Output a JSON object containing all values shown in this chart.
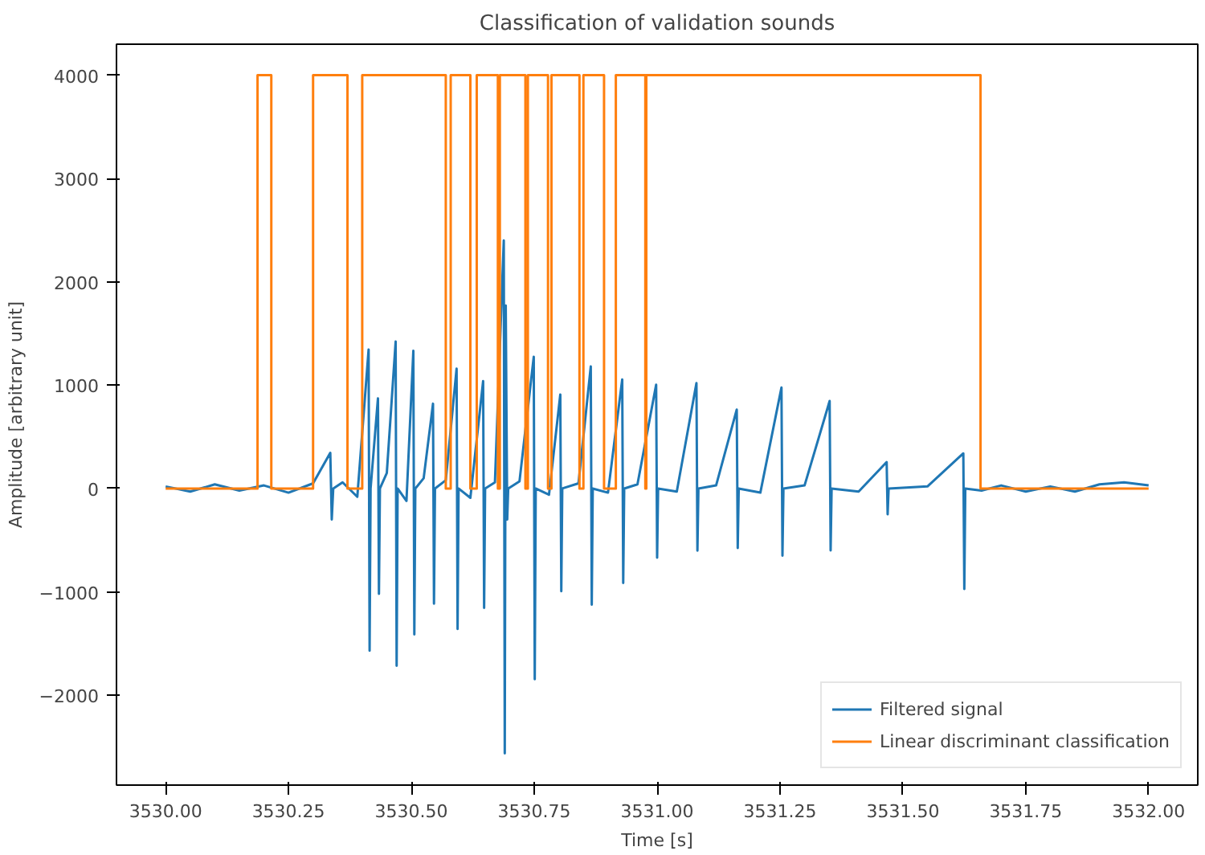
{
  "chart_data": {
    "type": "line",
    "title": "Classification of validation sounds",
    "xlabel": "Time [s]",
    "ylabel": "Amplitude [arbitrary unit]",
    "xlim": [
      3529.9,
      3532.1
    ],
    "ylim": [
      -2870,
      4300
    ],
    "xticks": [
      {
        "value": 3530,
        "label": "3530.00"
      },
      {
        "value": 3530.25,
        "label": "3530.25"
      },
      {
        "value": 3530.5,
        "label": "3530.50"
      },
      {
        "value": 3530.75,
        "label": "3530.75"
      },
      {
        "value": 3531,
        "label": "3531.00"
      },
      {
        "value": 3531.25,
        "label": "3531.25"
      },
      {
        "value": 3531.5,
        "label": "3531.50"
      },
      {
        "value": 3531.75,
        "label": "3531.75"
      },
      {
        "value": 3532,
        "label": "3532.00"
      }
    ],
    "yticks": [
      {
        "value": -2000,
        "label": "−2000"
      },
      {
        "value": -1000,
        "label": "−1000"
      },
      0,
      1000,
      2000,
      3000,
      4000
    ],
    "grid": false,
    "legend": "bottom right",
    "marker": "none",
    "line_style": "solid",
    "series": [
      {
        "name": "Filtered signal",
        "color": "#1f77b4",
        "x": [
          3530.0,
          3530.05,
          3530.1,
          3530.15,
          3530.2,
          3530.25,
          3530.3,
          3530.335,
          3530.338,
          3530.341,
          3530.36,
          3530.39,
          3530.413,
          3530.415,
          3530.417,
          3530.432,
          3530.434,
          3530.436,
          3530.45,
          3530.468,
          3530.47,
          3530.472,
          3530.49,
          3530.504,
          3530.506,
          3530.508,
          3530.525,
          3530.544,
          3530.546,
          3530.548,
          3530.57,
          3530.592,
          3530.594,
          3530.596,
          3530.62,
          3530.646,
          3530.648,
          3530.65,
          3530.67,
          3530.688,
          3530.69,
          3530.692,
          3530.695,
          3530.697,
          3530.72,
          3530.749,
          3530.751,
          3530.753,
          3530.78,
          3530.803,
          3530.805,
          3530.807,
          3530.84,
          3530.865,
          3530.867,
          3530.869,
          3530.9,
          3530.929,
          3530.931,
          3530.933,
          3530.96,
          3530.998,
          3531.0,
          3531.002,
          3531.04,
          3531.08,
          3531.082,
          3531.084,
          3531.12,
          3531.162,
          3531.164,
          3531.166,
          3531.21,
          3531.253,
          3531.255,
          3531.257,
          3531.3,
          3531.351,
          3531.353,
          3531.355,
          3531.41,
          3531.467,
          3531.469,
          3531.471,
          3531.55,
          3531.623,
          3531.625,
          3531.627,
          3531.66,
          3531.7,
          3531.75,
          3531.8,
          3531.85,
          3531.9,
          3531.95,
          3532.0
        ],
        "values": [
          20,
          -30,
          40,
          -20,
          30,
          -40,
          50,
          345,
          -300,
          0,
          60,
          -80,
          1345,
          -1570,
          0,
          873,
          -1020,
          0,
          150,
          1422,
          -1715,
          0,
          -120,
          1333,
          -1412,
          0,
          100,
          821,
          -1114,
          0,
          80,
          1161,
          -1360,
          0,
          -90,
          1040,
          -1156,
          0,
          60,
          2400,
          -2562,
          1770,
          -300,
          0,
          70,
          1275,
          -1846,
          0,
          -60,
          910,
          -993,
          0,
          50,
          1181,
          -1125,
          0,
          -40,
          1056,
          -915,
          0,
          40,
          1004,
          -669,
          0,
          -30,
          1020,
          -601,
          0,
          30,
          764,
          -576,
          0,
          -40,
          978,
          -650,
          0,
          30,
          847,
          -600,
          0,
          -30,
          256,
          -250,
          0,
          20,
          340,
          -973,
          0,
          -20,
          30,
          -30,
          20,
          -30,
          40,
          60,
          30
        ]
      },
      {
        "name": "Linear discriminant classification",
        "color": "#ff7f0e",
        "x": [
          3530.0,
          3530.187,
          3530.187,
          3530.215,
          3530.215,
          3530.3,
          3530.3,
          3530.37,
          3530.37,
          3530.4,
          3530.4,
          3530.57,
          3530.57,
          3530.58,
          3530.58,
          3530.62,
          3530.62,
          3530.633,
          3530.633,
          3530.676,
          3530.676,
          3530.68,
          3530.68,
          3530.732,
          3530.732,
          3530.737,
          3530.737,
          3530.778,
          3530.778,
          3530.785,
          3530.785,
          3530.842,
          3530.842,
          3530.85,
          3530.85,
          3530.892,
          3530.892,
          3530.916,
          3530.916,
          3530.976,
          3530.976,
          3530.978,
          3530.978,
          3531.658,
          3531.658,
          3532.0
        ],
        "values": [
          0,
          0,
          4000,
          4000,
          0,
          0,
          4000,
          4000,
          0,
          0,
          4000,
          4000,
          0,
          0,
          4000,
          4000,
          0,
          0,
          4000,
          4000,
          0,
          0,
          4000,
          4000,
          0,
          0,
          4000,
          4000,
          0,
          0,
          4000,
          4000,
          0,
          0,
          4000,
          4000,
          0,
          0,
          4000,
          4000,
          0,
          0,
          4000,
          4000,
          0,
          0
        ]
      }
    ]
  }
}
